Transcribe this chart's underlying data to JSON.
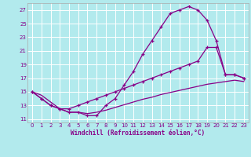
{
  "background_color": "#b2eaed",
  "grid_color": "#c8f0f2",
  "line_color": "#880088",
  "xlabel": "Windchill (Refroidissement éolien,°C)",
  "ylim": [
    10.5,
    28.0
  ],
  "xlim": [
    -0.5,
    23.5
  ],
  "yticks": [
    11,
    13,
    15,
    17,
    19,
    21,
    23,
    25,
    27
  ],
  "xticks": [
    0,
    1,
    2,
    3,
    4,
    5,
    6,
    7,
    8,
    9,
    10,
    11,
    12,
    13,
    14,
    15,
    16,
    17,
    18,
    19,
    20,
    21,
    22,
    23
  ],
  "curve1_x": [
    0,
    1,
    2,
    3,
    4,
    5,
    6,
    7,
    8,
    9,
    10,
    11,
    12,
    13,
    14,
    15,
    16,
    17,
    18,
    19,
    20,
    21,
    22,
    23
  ],
  "curve1_y": [
    15.0,
    14.0,
    13.0,
    12.5,
    12.0,
    12.0,
    11.5,
    11.5,
    13.0,
    14.0,
    16.0,
    18.0,
    20.5,
    22.5,
    24.5,
    26.5,
    27.0,
    27.5,
    27.0,
    25.5,
    22.5,
    17.5,
    17.5,
    17.0
  ],
  "curve2_x": [
    0,
    1,
    2,
    3,
    4,
    5,
    6,
    7,
    8,
    9,
    10,
    11,
    12,
    13,
    14,
    15,
    16,
    17,
    18,
    19,
    20,
    21,
    22,
    23
  ],
  "curve2_y": [
    15.0,
    14.0,
    13.0,
    12.5,
    12.5,
    13.0,
    13.5,
    14.0,
    14.5,
    15.0,
    15.5,
    16.0,
    16.5,
    17.0,
    17.5,
    18.0,
    18.5,
    19.0,
    19.5,
    21.5,
    21.5,
    17.5,
    17.5,
    17.0
  ],
  "curve3_x": [
    0,
    1,
    2,
    3,
    4,
    5,
    6,
    7,
    8,
    9,
    10,
    11,
    12,
    13,
    14,
    15,
    16,
    17,
    18,
    19,
    20,
    21,
    22,
    23
  ],
  "curve3_y": [
    15.0,
    14.5,
    13.5,
    12.5,
    12.0,
    12.0,
    11.8,
    12.0,
    12.3,
    12.7,
    13.1,
    13.5,
    13.9,
    14.2,
    14.6,
    14.9,
    15.2,
    15.5,
    15.8,
    16.1,
    16.3,
    16.5,
    16.7,
    16.5
  ]
}
